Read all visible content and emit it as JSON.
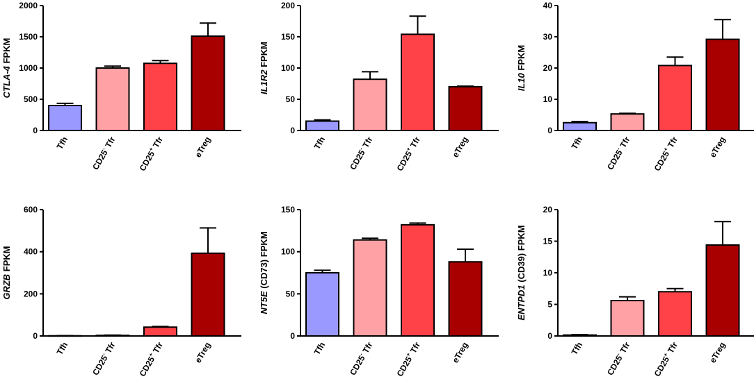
{
  "colors": {
    "Tfh": "#9999ff",
    "CD25- Tfr": "#ffa1a5",
    "CD25+ Tfr": "#ff4248",
    "eTreg": "#a80000",
    "stroke": "#000000"
  },
  "chart_data": [
    {
      "type": "bar",
      "gene": "CTLA-4",
      "ylabel_suffix": " FPKM",
      "categories": [
        "Tfh",
        "CD25- Tfr",
        "CD25+ Tfr",
        "eTreg"
      ],
      "category_labels": [
        {
          "base": "Tfh",
          "sup": "",
          "rest": ""
        },
        {
          "base": "CD25",
          "sup": "-",
          "rest": " Tfr"
        },
        {
          "base": "CD25",
          "sup": "+",
          "rest": " Tfr"
        },
        {
          "base": "eTreg",
          "sup": "",
          "rest": ""
        }
      ],
      "values": [
        400,
        1000,
        1075,
        1510
      ],
      "errors": [
        35,
        30,
        45,
        210
      ],
      "ylim": [
        0,
        2000
      ],
      "yticks": [
        "0",
        "500",
        "1000",
        "1500",
        "2000"
      ]
    },
    {
      "type": "bar",
      "gene": "IL1R2",
      "ylabel_suffix": " FPKM",
      "categories": [
        "Tfh",
        "CD25- Tfr",
        "CD25+ Tfr",
        "eTreg"
      ],
      "category_labels": [
        {
          "base": "Tfh",
          "sup": "",
          "rest": ""
        },
        {
          "base": "CD25",
          "sup": "-",
          "rest": " Tfr"
        },
        {
          "base": "CD25",
          "sup": "+",
          "rest": " Tfr"
        },
        {
          "base": "eTreg",
          "sup": "",
          "rest": ""
        }
      ],
      "values": [
        15,
        82,
        154,
        70
      ],
      "errors": [
        2,
        12,
        29,
        1
      ],
      "ylim": [
        0,
        200
      ],
      "yticks": [
        "0",
        "50",
        "100",
        "150",
        "200"
      ]
    },
    {
      "type": "bar",
      "gene": "IL10",
      "ylabel_suffix": " FPKM",
      "categories": [
        "Tfh",
        "CD25- Tfr",
        "CD25+ Tfr",
        "eTreg"
      ],
      "category_labels": [
        {
          "base": "Tfh",
          "sup": "",
          "rest": ""
        },
        {
          "base": "CD25",
          "sup": "-",
          "rest": " Tfr"
        },
        {
          "base": "CD25",
          "sup": "+",
          "rest": " Tfr"
        },
        {
          "base": "eTreg",
          "sup": "",
          "rest": ""
        }
      ],
      "values": [
        2.5,
        5.3,
        20.8,
        29.2
      ],
      "errors": [
        0.4,
        0.2,
        2.7,
        6.3
      ],
      "ylim": [
        0,
        40
      ],
      "yticks": [
        "0",
        "10",
        "20",
        "30",
        "40"
      ]
    },
    {
      "type": "bar",
      "gene": "GRZB",
      "ylabel_suffix": " FPKM",
      "categories": [
        "Tfh",
        "CD25- Tfr",
        "CD25+ Tfr",
        "eTreg"
      ],
      "category_labels": [
        {
          "base": "Tfh",
          "sup": "",
          "rest": ""
        },
        {
          "base": "CD25",
          "sup": "-",
          "rest": " Tfr"
        },
        {
          "base": "CD25",
          "sup": "+",
          "rest": " Tfr"
        },
        {
          "base": "eTreg",
          "sup": "",
          "rest": ""
        }
      ],
      "values": [
        1,
        3,
        42,
        393
      ],
      "errors": [
        0.5,
        1,
        3,
        120
      ],
      "ylim": [
        0,
        600
      ],
      "yticks": [
        "0",
        "200",
        "400",
        "600"
      ]
    },
    {
      "type": "bar",
      "gene": "NT5E",
      "ylabel_suffix": " (CD73) FPKM",
      "categories": [
        "Tfh",
        "CD25- Tfr",
        "CD25+ Tfr",
        "eTreg"
      ],
      "category_labels": [
        {
          "base": "Tfh",
          "sup": "",
          "rest": ""
        },
        {
          "base": "CD25",
          "sup": "-",
          "rest": " Tfr"
        },
        {
          "base": "CD25",
          "sup": "+",
          "rest": " Tfr"
        },
        {
          "base": "eTreg",
          "sup": "",
          "rest": ""
        }
      ],
      "values": [
        75,
        114,
        132,
        88
      ],
      "errors": [
        3,
        2,
        2,
        15
      ],
      "ylim": [
        0,
        150
      ],
      "yticks": [
        "0",
        "50",
        "100",
        "150"
      ]
    },
    {
      "type": "bar",
      "gene": "ENTPD1",
      "ylabel_suffix": " (CD39) FPKM",
      "categories": [
        "Tfh",
        "CD25- Tfr",
        "CD25+ Tfr",
        "eTreg"
      ],
      "category_labels": [
        {
          "base": "Tfh",
          "sup": "",
          "rest": ""
        },
        {
          "base": "CD25",
          "sup": "-",
          "rest": " Tfr"
        },
        {
          "base": "CD25",
          "sup": "+",
          "rest": " Tfr"
        },
        {
          "base": "eTreg",
          "sup": "",
          "rest": ""
        }
      ],
      "values": [
        0.15,
        5.6,
        7.0,
        14.4
      ],
      "errors": [
        0.05,
        0.6,
        0.5,
        3.7
      ],
      "ylim": [
        0,
        20
      ],
      "yticks": [
        "0",
        "5",
        "10",
        "15",
        "20"
      ]
    }
  ]
}
